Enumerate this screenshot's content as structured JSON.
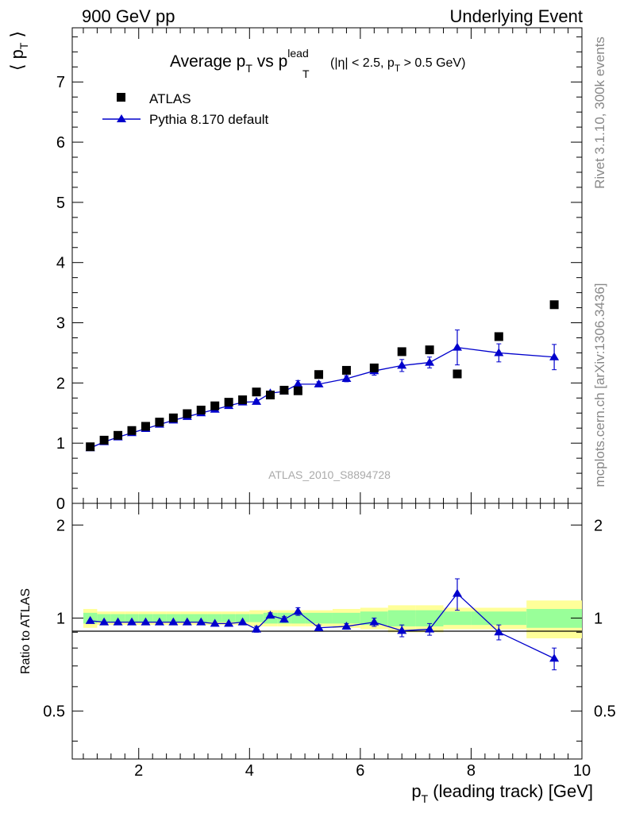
{
  "header": {
    "left": "900 GeV pp",
    "right": "Underlying Event"
  },
  "side_labels": {
    "rivet": "Rivet 3.1.10,  300k events",
    "mcplots": "mcplots.cern.ch [arXiv:1306.3436]"
  },
  "watermark": "ATLAS_2010_S8894728",
  "title": {
    "main": "Average p",
    "main_sub": "T",
    "vs": " vs p",
    "vs_sup": "lead",
    "vs_sub": "T",
    "cut_a": "(|η| < 2.5, p",
    "cut_sub": "T",
    "cut_b": " > 0.5 GeV)"
  },
  "legend": {
    "data_label": "ATLAS",
    "mc_label": "Pythia 8.170 default"
  },
  "colors": {
    "mc_line": "#0000cc",
    "band_green": "#99ff99",
    "band_yellow": "#ffff99"
  },
  "chart_data": [
    {
      "type": "scatter",
      "title": "Average pT vs pT lead (|η| < 2.5, pT > 0.5 GeV)",
      "ylabel": "⟨ p T ⟩",
      "ylim": [
        0,
        7.9
      ],
      "y_ticks": [
        "0",
        "1",
        "2",
        "3",
        "4",
        "5",
        "6",
        "7"
      ],
      "xlim": [
        0.8,
        10.0
      ],
      "legend_position": "top-left",
      "x": [
        1.125,
        1.375,
        1.625,
        1.875,
        2.125,
        2.375,
        2.625,
        2.875,
        3.125,
        3.375,
        3.625,
        3.875,
        4.125,
        4.375,
        4.625,
        4.875,
        5.25,
        5.75,
        6.25,
        6.75,
        7.25,
        7.75,
        8.5,
        9.5
      ],
      "series": [
        {
          "name": "ATLAS",
          "marker": "square",
          "values": [
            0.94,
            1.05,
            1.13,
            1.21,
            1.28,
            1.35,
            1.42,
            1.49,
            1.55,
            1.62,
            1.68,
            1.72,
            1.85,
            1.8,
            1.88,
            1.87,
            2.14,
            2.21,
            2.25,
            2.52,
            2.55,
            2.15,
            2.77,
            3.3
          ]
        },
        {
          "name": "Pythia 8.170 default",
          "marker": "triangle",
          "values": [
            0.92,
            1.02,
            1.1,
            1.17,
            1.24,
            1.31,
            1.38,
            1.44,
            1.5,
            1.56,
            1.62,
            1.68,
            1.69,
            1.83,
            1.86,
            1.98,
            1.98,
            2.07,
            2.2,
            2.29,
            2.34,
            2.59,
            2.5,
            2.43
          ],
          "errors": [
            0.01,
            0.01,
            0.01,
            0.01,
            0.01,
            0.01,
            0.01,
            0.01,
            0.01,
            0.02,
            0.02,
            0.02,
            0.03,
            0.03,
            0.04,
            0.06,
            0.04,
            0.05,
            0.07,
            0.1,
            0.09,
            0.29,
            0.15,
            0.21
          ]
        }
      ]
    },
    {
      "type": "scatter",
      "ylabel": "Ratio to ATLAS",
      "xlabel": "p T (leading track) [GeV]",
      "ylim": [
        0.35,
        2.35
      ],
      "y_ticks": [
        "0.5",
        "1",
        "2"
      ],
      "x_ticks": [
        "2",
        "4",
        "6",
        "8",
        "10"
      ],
      "xlim": [
        0.8,
        10.0
      ],
      "reference_line": 1.0,
      "uncertainty_bands": {
        "x_edges": [
          1.0,
          1.25,
          1.5,
          1.75,
          2.0,
          2.25,
          2.5,
          2.75,
          3.0,
          3.25,
          3.5,
          3.75,
          4.0,
          4.25,
          4.5,
          4.75,
          5.0,
          5.5,
          6.0,
          6.5,
          7.0,
          7.5,
          8.0,
          9.0,
          10.0
        ],
        "inner": [
          0.04,
          0.03,
          0.03,
          0.03,
          0.03,
          0.03,
          0.03,
          0.03,
          0.03,
          0.03,
          0.03,
          0.03,
          0.03,
          0.04,
          0.04,
          0.04,
          0.04,
          0.04,
          0.05,
          0.06,
          0.06,
          0.05,
          0.05,
          0.07
        ],
        "outer": [
          0.07,
          0.05,
          0.05,
          0.05,
          0.05,
          0.05,
          0.05,
          0.05,
          0.05,
          0.05,
          0.05,
          0.05,
          0.06,
          0.06,
          0.06,
          0.06,
          0.06,
          0.07,
          0.08,
          0.1,
          0.1,
          0.08,
          0.08,
          0.14
        ]
      },
      "x": [
        1.125,
        1.375,
        1.625,
        1.875,
        2.125,
        2.375,
        2.625,
        2.875,
        3.125,
        3.375,
        3.625,
        3.875,
        4.125,
        4.375,
        4.625,
        4.875,
        5.25,
        5.75,
        6.25,
        6.75,
        7.25,
        7.75,
        8.5,
        9.5
      ],
      "series": [
        {
          "name": "Pythia 8.170 default",
          "marker": "triangle",
          "values": [
            0.98,
            0.97,
            0.97,
            0.97,
            0.97,
            0.97,
            0.97,
            0.97,
            0.97,
            0.96,
            0.96,
            0.97,
            0.92,
            1.02,
            0.99,
            1.05,
            0.93,
            0.94,
            0.97,
            0.91,
            0.92,
            1.2,
            0.9,
            0.74
          ],
          "errors": [
            0.01,
            0.01,
            0.01,
            0.01,
            0.01,
            0.01,
            0.01,
            0.01,
            0.01,
            0.01,
            0.01,
            0.01,
            0.02,
            0.02,
            0.02,
            0.03,
            0.02,
            0.02,
            0.03,
            0.04,
            0.04,
            0.14,
            0.05,
            0.06
          ]
        }
      ]
    }
  ]
}
